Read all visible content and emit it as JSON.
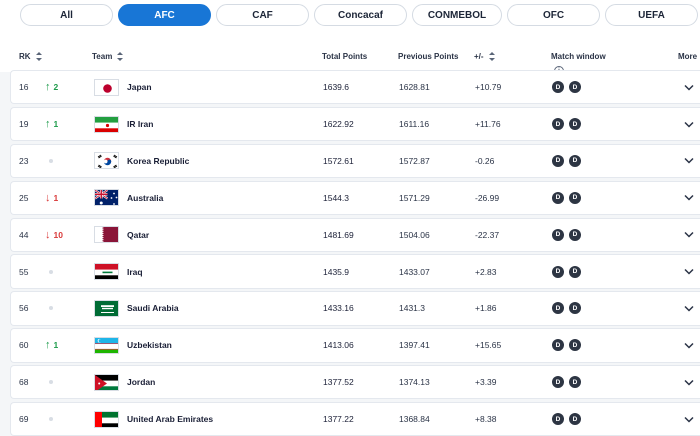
{
  "tabs": [
    {
      "label": "All",
      "active": false
    },
    {
      "label": "AFC",
      "active": true
    },
    {
      "label": "CAF",
      "active": false
    },
    {
      "label": "Concacaf",
      "active": false
    },
    {
      "label": "CONMEBOL",
      "active": false
    },
    {
      "label": "OFC",
      "active": false
    },
    {
      "label": "UEFA",
      "active": false
    }
  ],
  "header": {
    "rk": "RK",
    "team": "Team",
    "total_points": "Total Points",
    "previous_points": "Previous Points",
    "plus_minus": "+/-",
    "match_window": "Match window",
    "info_glyph": "i",
    "more": "More"
  },
  "rows": [
    {
      "rank": "16",
      "move": "up",
      "change": "2",
      "team": "Japan",
      "flag": "japan",
      "total": "1639.6",
      "previous": "1628.81",
      "diff": "+10.79",
      "windows": [
        "D",
        "D"
      ]
    },
    {
      "rank": "19",
      "move": "up",
      "change": "1",
      "team": "IR Iran",
      "flag": "iran",
      "total": "1622.92",
      "previous": "1611.16",
      "diff": "+11.76",
      "windows": [
        "D",
        "D"
      ]
    },
    {
      "rank": "23",
      "move": "none",
      "change": "",
      "team": "Korea Republic",
      "flag": "korea",
      "total": "1572.61",
      "previous": "1572.87",
      "diff": "-0.26",
      "windows": [
        "D",
        "D"
      ]
    },
    {
      "rank": "25",
      "move": "down",
      "change": "1",
      "team": "Australia",
      "flag": "australia",
      "total": "1544.3",
      "previous": "1571.29",
      "diff": "-26.99",
      "windows": [
        "D",
        "D"
      ]
    },
    {
      "rank": "44",
      "move": "down",
      "change": "10",
      "team": "Qatar",
      "flag": "qatar",
      "total": "1481.69",
      "previous": "1504.06",
      "diff": "-22.37",
      "windows": [
        "D",
        "D"
      ]
    },
    {
      "rank": "55",
      "move": "none",
      "change": "",
      "team": "Iraq",
      "flag": "iraq",
      "total": "1435.9",
      "previous": "1433.07",
      "diff": "+2.83",
      "windows": [
        "D",
        "D"
      ]
    },
    {
      "rank": "56",
      "move": "none",
      "change": "",
      "team": "Saudi Arabia",
      "flag": "saudi",
      "total": "1433.16",
      "previous": "1431.3",
      "diff": "+1.86",
      "windows": [
        "D",
        "D"
      ]
    },
    {
      "rank": "60",
      "move": "up",
      "change": "1",
      "team": "Uzbekistan",
      "flag": "uzbekistan",
      "total": "1413.06",
      "previous": "1397.41",
      "diff": "+15.65",
      "windows": [
        "D",
        "D"
      ]
    },
    {
      "rank": "68",
      "move": "none",
      "change": "",
      "team": "Jordan",
      "flag": "jordan",
      "total": "1377.52",
      "previous": "1374.13",
      "diff": "+3.39",
      "windows": [
        "D",
        "D"
      ]
    },
    {
      "rank": "69",
      "move": "none",
      "change": "",
      "team": "United Arab Emirates",
      "flag": "uae",
      "total": "1377.22",
      "previous": "1368.84",
      "diff": "+8.38",
      "windows": [
        "D",
        "D"
      ]
    }
  ],
  "colors": {
    "accent": "#1876d6",
    "up": "#1e9b4b",
    "down": "#d93a3a",
    "badge": "#2d3543"
  }
}
